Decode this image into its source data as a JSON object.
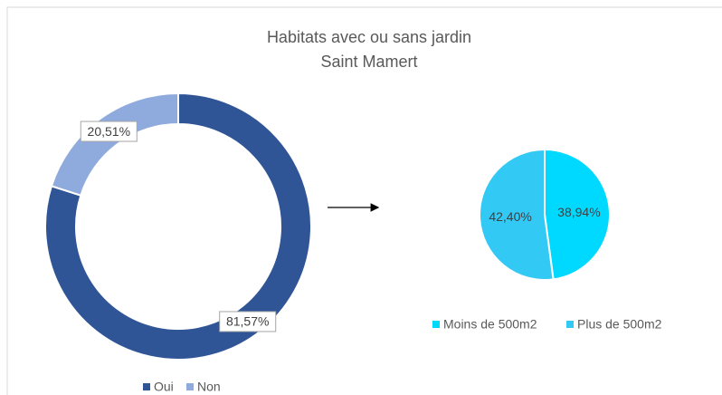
{
  "chart_data": [
    {
      "type": "donut",
      "title": "Habitats avec ou sans jardin",
      "subtitle": "Saint Mamert",
      "categories": [
        "Oui",
        "Non"
      ],
      "values": [
        81.57,
        20.51
      ],
      "value_labels": [
        "81,57%",
        "20,51%"
      ],
      "colors": [
        "#2f5597",
        "#8faadc"
      ],
      "legend": "bottom"
    },
    {
      "type": "pie",
      "categories": [
        "Moins de 500m2",
        "Plus de 500m2"
      ],
      "values": [
        38.94,
        42.4
      ],
      "value_labels": [
        "38,94%",
        "42,40%"
      ],
      "colors": [
        "#00d9ff",
        "#33c9f5"
      ],
      "legend": "bottom"
    }
  ]
}
